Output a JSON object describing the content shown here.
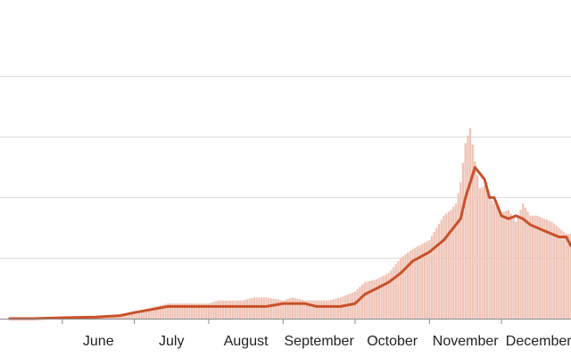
{
  "chart_data": {
    "type": "bar",
    "title": "",
    "xlabel": "",
    "ylabel": "",
    "ylim": [
      0,
      100
    ],
    "grid": true,
    "legend": "none",
    "x_range": [
      "2020-05-06",
      "2020-12-30"
    ],
    "month_ticks": [
      {
        "date": "2020-06-01",
        "label": "June"
      },
      {
        "date": "2020-07-01",
        "label": "July"
      },
      {
        "date": "2020-08-01",
        "label": "August"
      },
      {
        "date": "2020-09-01",
        "label": "September"
      },
      {
        "date": "2020-10-01",
        "label": "October"
      },
      {
        "date": "2020-11-01",
        "label": "November"
      },
      {
        "date": "2020-12-01",
        "label": "December"
      }
    ],
    "y_gridlines": [
      0,
      20,
      40,
      60,
      80
    ],
    "colors": {
      "bar": "#efc3b5",
      "line": "#c9512a"
    },
    "series": [
      {
        "type": "bar",
        "x": [
          "2020-05-10",
          "2020-05-20",
          "2020-06-01",
          "2020-06-15",
          "2020-06-25",
          "2020-07-01",
          "2020-07-05",
          "2020-07-10",
          "2020-07-15",
          "2020-07-20",
          "2020-07-25",
          "2020-08-01",
          "2020-08-05",
          "2020-08-10",
          "2020-08-15",
          "2020-08-20",
          "2020-08-25",
          "2020-09-01",
          "2020-09-05",
          "2020-09-10",
          "2020-09-15",
          "2020-09-20",
          "2020-09-25",
          "2020-10-01",
          "2020-10-05",
          "2020-10-10",
          "2020-10-15",
          "2020-10-20",
          "2020-10-25",
          "2020-11-01",
          "2020-11-04",
          "2020-11-07",
          "2020-11-10",
          "2020-11-12",
          "2020-11-14",
          "2020-11-16",
          "2020-11-18",
          "2020-11-20",
          "2020-11-22",
          "2020-11-24",
          "2020-11-26",
          "2020-11-28",
          "2020-12-01",
          "2020-12-04",
          "2020-12-07",
          "2020-12-10",
          "2020-12-13",
          "2020-12-16",
          "2020-12-19",
          "2020-12-22",
          "2020-12-25",
          "2020-12-28"
        ],
        "values": [
          0,
          0,
          0.5,
          0.5,
          1,
          2,
          3,
          4,
          5,
          5,
          5,
          5,
          6,
          6,
          6,
          7,
          7,
          6,
          7,
          6,
          6,
          6,
          7,
          9,
          12,
          13,
          15,
          20,
          23,
          26,
          30,
          34,
          36,
          38,
          45,
          58,
          63,
          52,
          43,
          44,
          40,
          38,
          35,
          36,
          32,
          38,
          34,
          34,
          33,
          32,
          30,
          28
        ]
      },
      {
        "type": "line",
        "x": [
          "2020-05-10",
          "2020-05-20",
          "2020-06-01",
          "2020-06-15",
          "2020-06-25",
          "2020-07-01",
          "2020-07-08",
          "2020-07-15",
          "2020-07-20",
          "2020-07-25",
          "2020-08-01",
          "2020-08-05",
          "2020-08-10",
          "2020-08-15",
          "2020-08-20",
          "2020-08-25",
          "2020-09-01",
          "2020-09-05",
          "2020-09-10",
          "2020-09-15",
          "2020-09-20",
          "2020-09-25",
          "2020-10-01",
          "2020-10-05",
          "2020-10-10",
          "2020-10-15",
          "2020-10-20",
          "2020-10-25",
          "2020-11-01",
          "2020-11-04",
          "2020-11-07",
          "2020-11-10",
          "2020-11-12",
          "2020-11-14",
          "2020-11-16",
          "2020-11-18",
          "2020-11-20",
          "2020-11-22",
          "2020-11-24",
          "2020-11-26",
          "2020-11-28",
          "2020-12-01",
          "2020-12-04",
          "2020-12-07",
          "2020-12-10",
          "2020-12-13",
          "2020-12-16",
          "2020-12-19",
          "2020-12-22",
          "2020-12-25",
          "2020-12-28",
          "2020-12-30"
        ],
        "values": [
          0,
          0,
          0.3,
          0.5,
          1,
          2,
          3,
          4,
          4,
          4,
          4,
          4,
          4,
          4,
          4,
          4,
          5,
          5,
          5,
          4,
          4,
          4,
          5,
          8,
          10,
          12,
          15,
          19,
          22,
          24,
          26,
          29,
          31,
          33,
          40,
          45,
          50,
          48,
          46,
          40,
          40,
          34,
          33,
          34,
          33,
          31,
          30,
          29,
          28,
          27,
          27,
          24
        ]
      }
    ]
  }
}
